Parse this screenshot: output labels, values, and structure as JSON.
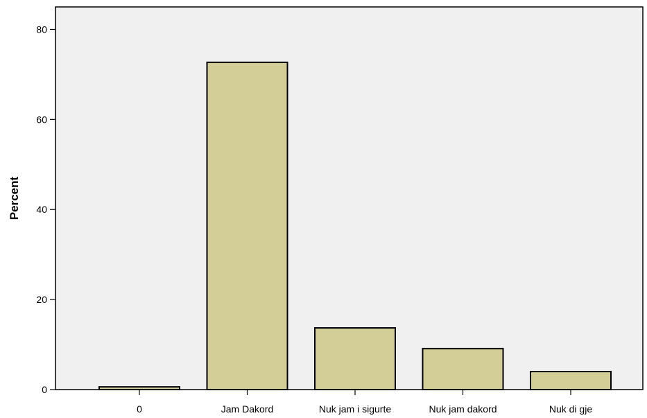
{
  "chart_data": {
    "type": "bar",
    "title": "",
    "xlabel": "",
    "ylabel": "Percent",
    "categories": [
      "0",
      "Jam Dakord",
      "Nuk jam i sigurte",
      "Nuk jam dakord",
      "Nuk di gje"
    ],
    "values": [
      0.6,
      72.7,
      13.7,
      9.1,
      4.0
    ],
    "ylim": [
      0,
      85
    ],
    "yticks": [
      0,
      20,
      40,
      60,
      80
    ],
    "grid": false,
    "legend": "none",
    "colors": {
      "plot_background": "#f0f0f0",
      "bar_fill": "#d3ce97",
      "bar_stroke": "#000000"
    }
  }
}
